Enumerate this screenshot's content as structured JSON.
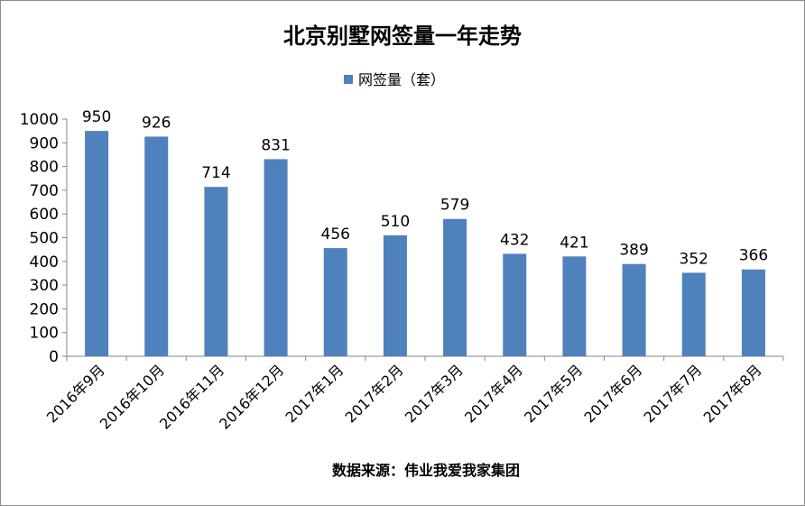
{
  "chart_data": {
    "type": "bar",
    "title": "北京别墅网签量一年走势",
    "categories": [
      "2016年9月",
      "2016年10月",
      "2016年11月",
      "2016年12月",
      "2017年1月",
      "2017年2月",
      "2017年3月",
      "2017年4月",
      "2017年5月",
      "2017年6月",
      "2017年7月",
      "2017年8月"
    ],
    "series": [
      {
        "name": "网签量（套）",
        "values": [
          950,
          926,
          714,
          831,
          456,
          510,
          579,
          432,
          421,
          389,
          352,
          366
        ],
        "color": "#4f81bd"
      }
    ],
    "xlabel": "",
    "ylabel": "",
    "ylim": [
      0,
      1000
    ],
    "yticks": [
      0,
      100,
      200,
      300,
      400,
      500,
      600,
      700,
      800,
      900,
      1000
    ],
    "grid": false,
    "legend": "top-center",
    "source": "数据来源：伟业我爱我家集团"
  }
}
